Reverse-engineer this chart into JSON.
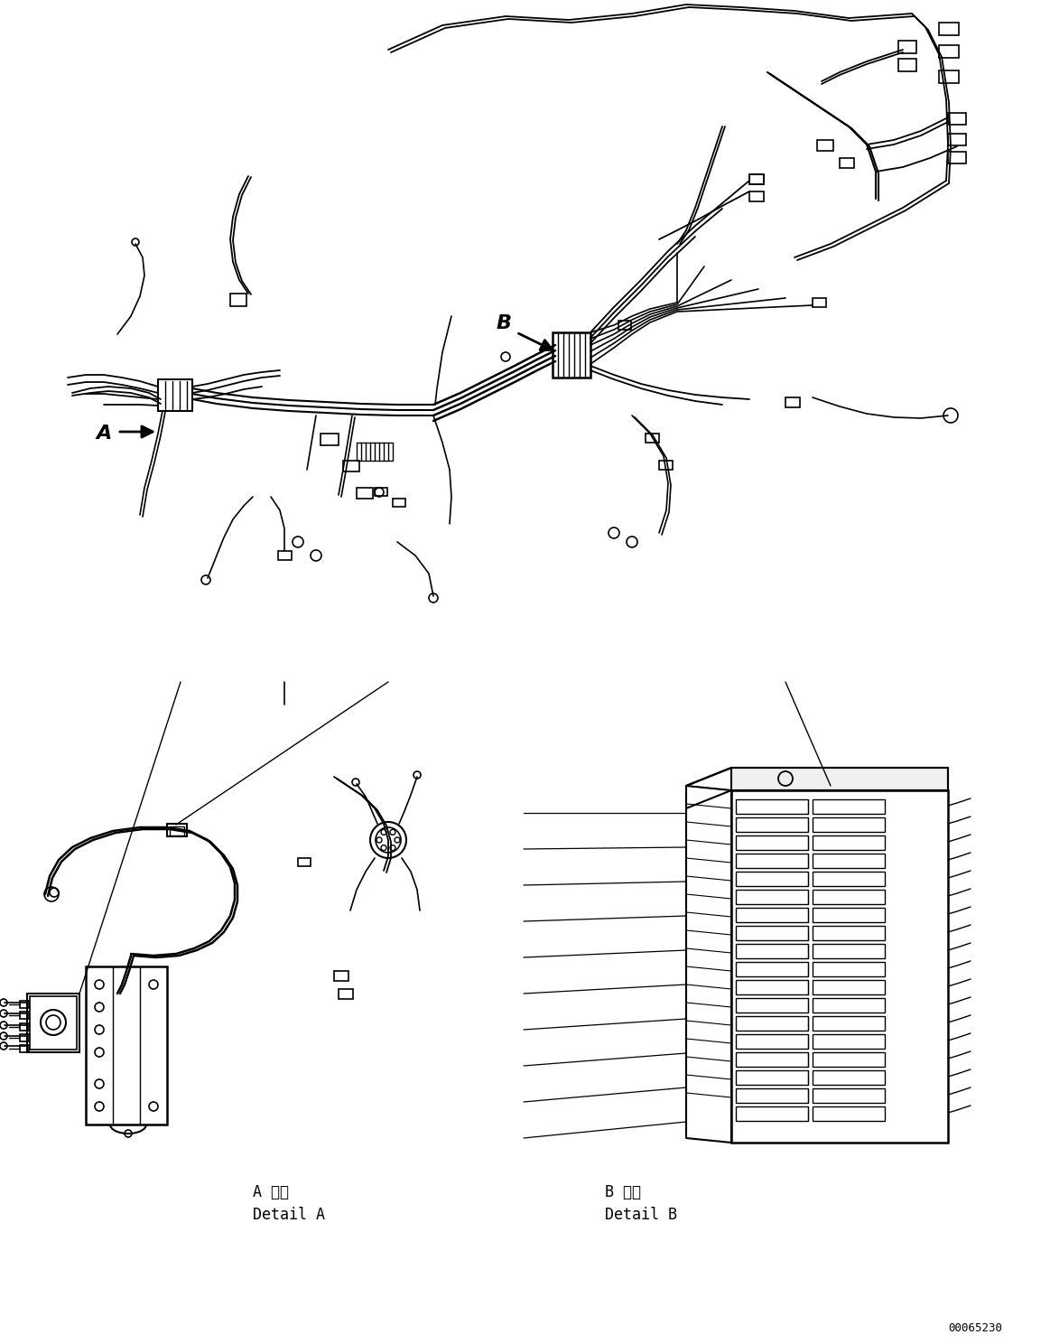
{
  "background_color": "#ffffff",
  "line_color": "#000000",
  "part_number": "00065230",
  "label_A": "A",
  "label_B": "B",
  "detail_A_japanese": "A 詳細",
  "detail_A_english": "Detail A",
  "detail_B_japanese": "B 詳細",
  "detail_B_english": "Detail B",
  "fig_width": 11.63,
  "fig_height": 14.88,
  "dpi": 100
}
